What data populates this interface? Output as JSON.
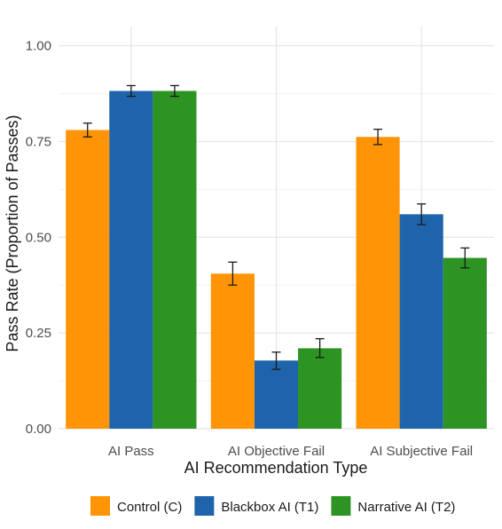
{
  "chart_data": {
    "type": "bar",
    "title": "",
    "xlabel": "AI Recommendation Type",
    "ylabel": "Pass Rate (Proportion of Passes)",
    "categories": [
      "AI Pass",
      "AI Objective Fail",
      "AI Subjective Fail"
    ],
    "ylim": [
      0,
      1.05
    ],
    "yticks": [
      "0.00",
      "0.25",
      "0.50",
      "0.75",
      "1.00"
    ],
    "grid": true,
    "legend_position": "bottom",
    "series": [
      {
        "name": "Control (C)",
        "color": "#FF9407",
        "values": [
          0.78,
          0.405,
          0.762
        ],
        "error_low": [
          0.762,
          0.375,
          0.742
        ],
        "error_high": [
          0.798,
          0.435,
          0.782
        ]
      },
      {
        "name": "Blackbox AI (T1)",
        "color": "#1F64AA",
        "values": [
          0.882,
          0.178,
          0.56
        ],
        "error_low": [
          0.868,
          0.155,
          0.533
        ],
        "error_high": [
          0.896,
          0.2,
          0.587
        ]
      },
      {
        "name": "Narrative AI (T2)",
        "color": "#2D9323",
        "values": [
          0.882,
          0.21,
          0.446
        ],
        "error_low": [
          0.868,
          0.186,
          0.42
        ],
        "error_high": [
          0.896,
          0.235,
          0.472
        ]
      }
    ]
  }
}
